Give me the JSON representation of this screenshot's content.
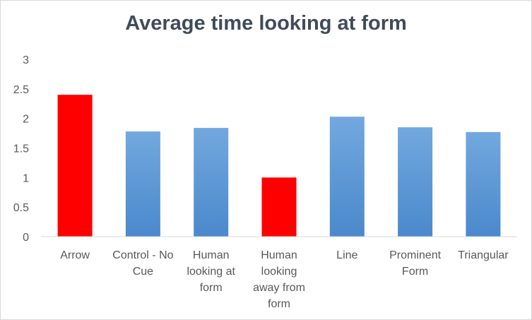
{
  "chart_data": {
    "type": "bar",
    "title": "Average time looking at form",
    "xlabel": "",
    "ylabel": "",
    "categories": [
      "Arrow",
      "Control - No Cue",
      "Human looking at form",
      "Human looking away from form",
      "Line",
      "Prominent Form",
      "Triangular"
    ],
    "category_label_lines": [
      [
        "Arrow"
      ],
      [
        "Control - No",
        "Cue"
      ],
      [
        "Human",
        "looking at",
        "form"
      ],
      [
        "Human",
        "looking",
        "away from",
        "form"
      ],
      [
        "Line"
      ],
      [
        "Prominent",
        "Form"
      ],
      [
        "Triangular"
      ]
    ],
    "values": [
      2.4,
      1.78,
      1.84,
      1.0,
      2.03,
      1.85,
      1.77
    ],
    "bar_colors": [
      "#ff0000",
      "#5b9bd5",
      "#5b9bd5",
      "#ff0000",
      "#5b9bd5",
      "#5b9bd5",
      "#5b9bd5"
    ],
    "ylim": [
      0,
      3
    ],
    "yticks": [
      "0",
      "0.5",
      "1",
      "1.5",
      "2",
      "2.5",
      "3"
    ],
    "grid": false,
    "legend": "none"
  }
}
